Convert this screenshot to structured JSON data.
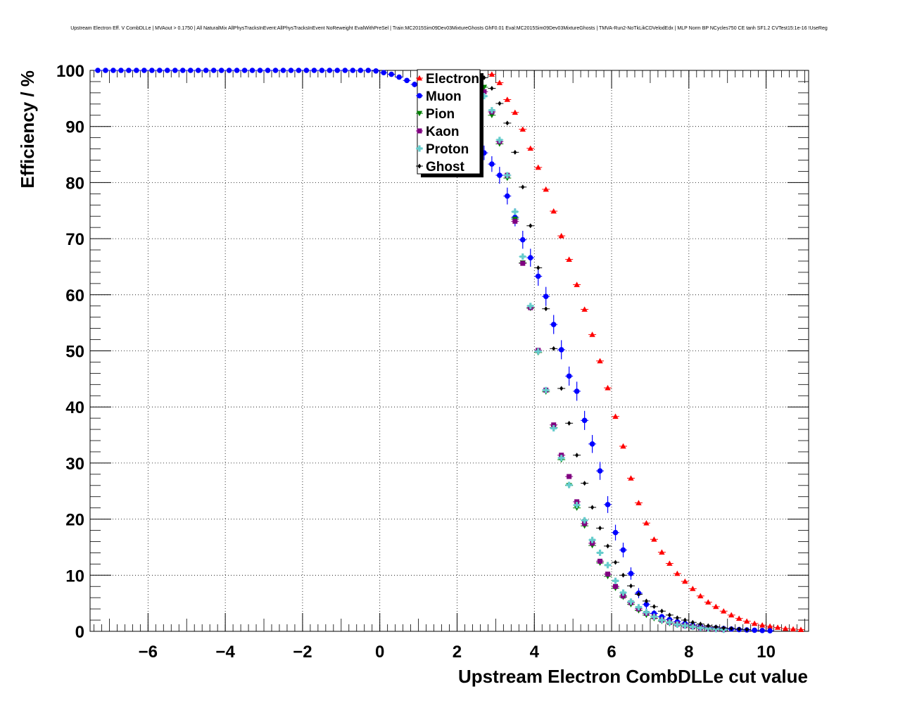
{
  "chart_data": {
    "type": "scatter",
    "title": "Upstream Electron Eff. V CombDLLe | MVAout > 0.1750 | All NaturalMix AllPhysTracksInEvent:AllPhysTracksInEvent NoReweight EvalWithPreSel | Train:MC2015Sim09Dev03MixtureGhosts GhF0.01 Eval:MC2015Sim09Dev03MixtureGhosts | TMVA-Run2-NoTkLikCDVelodEdx | MLP Norm BP NCycles750 CE tanh SF1.2 CVTest15:1e-16 !UseReg",
    "xlabel": "Upstream Electron CombDLLe cut value",
    "ylabel": "Efficiency / %",
    "xlim": [
      -7.5,
      11.1
    ],
    "ylim": [
      0,
      100
    ],
    "grid": true,
    "legend_position": "top-center",
    "x_ticks": [
      "−6",
      "−4",
      "−2",
      "0",
      "2",
      "4",
      "6",
      "8",
      "10"
    ],
    "x_tick_values": [
      -6,
      -4,
      -2,
      0,
      2,
      4,
      6,
      8,
      10
    ],
    "y_ticks": [
      "0",
      "10",
      "20",
      "30",
      "40",
      "50",
      "60",
      "70",
      "80",
      "90",
      "100"
    ],
    "y_tick_values": [
      0,
      10,
      20,
      30,
      40,
      50,
      60,
      70,
      80,
      90,
      100
    ],
    "series": [
      {
        "name": "Electron",
        "color": "#ff0000",
        "marker": "triangle-up",
        "x": [
          2.9,
          3.1,
          3.3,
          3.5,
          3.7,
          3.9,
          4.1,
          4.3,
          4.5,
          4.7,
          4.9,
          5.1,
          5.3,
          5.5,
          5.7,
          5.9,
          6.1,
          6.3,
          6.5,
          6.7,
          6.9,
          7.1,
          7.3,
          7.5,
          7.7,
          7.9,
          8.1,
          8.3,
          8.5,
          8.7,
          8.9,
          9.1,
          9.3,
          9.5,
          9.7,
          9.9,
          10.1,
          10.3,
          10.5,
          10.7,
          10.9
        ],
        "y": [
          99.3,
          97.8,
          94.8,
          92.5,
          89.5,
          86.1,
          82.7,
          78.8,
          74.9,
          70.5,
          66.3,
          61.8,
          57.4,
          52.9,
          48.2,
          43.4,
          38.3,
          33.0,
          27.3,
          22.9,
          19.3,
          16.4,
          14.1,
          12.1,
          10.3,
          8.9,
          7.6,
          6.3,
          5.2,
          4.4,
          3.6,
          2.9,
          2.3,
          1.8,
          1.4,
          1.1,
          0.9,
          0.7,
          0.5,
          0.4,
          0.3
        ]
      },
      {
        "name": "Muon",
        "color": "#0000ff",
        "marker": "circle",
        "x": [
          -7.3,
          -7.1,
          -6.9,
          -6.7,
          -6.5,
          -6.3,
          -6.1,
          -5.9,
          -5.7,
          -5.5,
          -5.3,
          -5.1,
          -4.9,
          -4.7,
          -4.5,
          -4.3,
          -4.1,
          -3.9,
          -3.7,
          -3.5,
          -3.3,
          -3.1,
          -2.9,
          -2.7,
          -2.5,
          -2.3,
          -2.1,
          -1.9,
          -1.7,
          -1.5,
          -1.3,
          -1.1,
          -0.9,
          -0.7,
          -0.5,
          -0.3,
          -0.1,
          0.1,
          0.3,
          0.5,
          0.7,
          0.9,
          1.1,
          1.3,
          1.5,
          1.7,
          1.9,
          2.1,
          2.3,
          2.5,
          2.7,
          2.9,
          3.1,
          3.3,
          3.5,
          3.7,
          3.9,
          4.1,
          4.3,
          4.5,
          4.7,
          4.9,
          5.1,
          5.3,
          5.5,
          5.7,
          5.9,
          6.1,
          6.3,
          6.5,
          6.7,
          6.9,
          7.1,
          7.3,
          7.5,
          7.7,
          7.9,
          8.1,
          8.3,
          8.5,
          8.7,
          8.9,
          9.1,
          9.3,
          9.5,
          9.7,
          9.9,
          10.1
        ],
        "y": [
          100,
          100,
          100,
          100,
          100,
          100,
          100,
          100,
          100,
          100,
          100,
          100,
          100,
          100,
          100,
          100,
          100,
          100,
          100,
          100,
          100,
          100,
          100,
          100,
          100,
          100,
          100,
          100,
          100,
          100,
          100,
          100,
          100,
          100,
          100,
          100,
          99.9,
          99.6,
          99.3,
          98.8,
          98.2,
          97.5,
          96.6,
          95.5,
          94.3,
          93.0,
          91.5,
          89.9,
          88.2,
          86.5,
          85.3,
          83.3,
          81.3,
          77.6,
          73.8,
          69.8,
          66.6,
          63.3,
          59.7,
          54.7,
          50.2,
          45.5,
          42.8,
          37.6,
          33.4,
          28.6,
          22.6,
          17.6,
          14.5,
          10.3,
          6.8,
          4.8,
          3.2,
          2.6,
          2.1,
          1.7,
          1.4,
          1.1,
          0.9,
          0.7,
          0.6,
          0.5,
          0.4,
          0.3,
          0.25,
          0.2,
          0.15,
          0.1
        ],
        "yerr": [
          0,
          0,
          0,
          0,
          0,
          0,
          0,
          0,
          0,
          0,
          0,
          0,
          0,
          0,
          0,
          0,
          0,
          0,
          0,
          0,
          0,
          0,
          0,
          0,
          0,
          0,
          0,
          0,
          0,
          0,
          0,
          0,
          0,
          0,
          0,
          0,
          0.1,
          0.2,
          0.3,
          0.3,
          0.4,
          0.5,
          0.6,
          0.7,
          0.8,
          0.9,
          1.0,
          1.1,
          1.2,
          1.2,
          1.3,
          1.4,
          1.5,
          1.5,
          1.6,
          1.6,
          1.6,
          1.7,
          1.7,
          1.7,
          1.7,
          1.7,
          1.7,
          1.7,
          1.6,
          1.6,
          1.5,
          1.4,
          1.3,
          1.1,
          0.9,
          0.8,
          0.6,
          0.5,
          0.5,
          0.4,
          0.4,
          0.3,
          0.3,
          0.3,
          0.2,
          0.2,
          0.2,
          0.2,
          0.1,
          0.1,
          0.1,
          0.1
        ]
      },
      {
        "name": "Pion",
        "color": "#008000",
        "marker": "triangle-down",
        "x": [
          2.5,
          2.7,
          2.9,
          3.1,
          3.3,
          3.5,
          3.7,
          3.9,
          4.1,
          4.3,
          4.5,
          4.7,
          4.9,
          5.1,
          5.3,
          5.5,
          5.7,
          5.9,
          6.1,
          6.3,
          6.5,
          6.7,
          6.9,
          7.1,
          7.3,
          7.5,
          7.7,
          7.9,
          8.1,
          8.3,
          8.5,
          8.7,
          8.9
        ],
        "y": [
          98.3,
          97.0,
          92.0,
          86.9,
          80.8,
          73.5,
          65.7,
          57.6,
          49.7,
          42.7,
          36.3,
          30.6,
          26.0,
          22.0,
          18.8,
          15.3,
          12.2,
          9.8,
          7.7,
          6.1,
          4.8,
          3.7,
          2.9,
          2.3,
          1.8,
          1.4,
          1.1,
          0.9,
          0.7,
          0.5,
          0.4,
          0.3,
          0.2
        ]
      },
      {
        "name": "Kaon",
        "color": "#800080",
        "marker": "square",
        "x": [
          2.5,
          2.7,
          2.9,
          3.1,
          3.3,
          3.5,
          3.7,
          3.9,
          4.1,
          4.3,
          4.5,
          4.7,
          4.9,
          5.1,
          5.3,
          5.5,
          5.7,
          5.9,
          6.1,
          6.3,
          6.5,
          6.7,
          6.9,
          7.1,
          7.3,
          7.5,
          7.7,
          7.9,
          8.1,
          8.3,
          8.5,
          8.7,
          8.9
        ],
        "y": [
          98.5,
          96.2,
          92.6,
          87.3,
          81.3,
          73.1,
          65.6,
          57.7,
          50.1,
          43.0,
          36.8,
          31.4,
          27.6,
          23.1,
          19.2,
          15.7,
          12.5,
          10.2,
          8.0,
          6.3,
          5.1,
          4.0,
          3.2,
          2.6,
          2.0,
          1.6,
          1.3,
          1.0,
          0.8,
          0.6,
          0.5,
          0.4,
          0.3
        ]
      },
      {
        "name": "Proton",
        "color": "#66cccc",
        "marker": "cross",
        "x": [
          2.5,
          2.7,
          2.9,
          3.1,
          3.3,
          3.5,
          3.7,
          3.9,
          4.1,
          4.3,
          4.5,
          4.7,
          4.9,
          5.1,
          5.3,
          5.5,
          5.7,
          5.9,
          6.1,
          6.3,
          6.5,
          6.7,
          6.9,
          7.1,
          7.3,
          7.5,
          7.7,
          7.9,
          8.1,
          8.3,
          8.5,
          8.7,
          8.9
        ],
        "y": [
          98.0,
          95.4,
          92.9,
          87.6,
          81.3,
          74.8,
          66.8,
          58.0,
          49.9,
          43.0,
          36.2,
          30.9,
          26.1,
          22.5,
          19.8,
          16.3,
          14.0,
          11.8,
          9.0,
          6.9,
          5.3,
          4.3,
          3.4,
          2.6,
          2.0,
          1.6,
          1.2,
          1.0,
          0.8,
          0.6,
          0.5,
          0.4,
          0.3
        ]
      },
      {
        "name": "Ghost",
        "color": "#000000",
        "marker": "diamond",
        "x": [
          2.5,
          2.7,
          2.9,
          3.1,
          3.3,
          3.5,
          3.7,
          3.9,
          4.1,
          4.3,
          4.5,
          4.7,
          4.9,
          5.1,
          5.3,
          5.5,
          5.7,
          5.9,
          6.1,
          6.3,
          6.5,
          6.7,
          6.9,
          7.1,
          7.3,
          7.5,
          7.7,
          7.9,
          8.1,
          8.3,
          8.5,
          8.7,
          8.9,
          9.1,
          9.3,
          9.5
        ],
        "y": [
          99.6,
          98.7,
          96.8,
          94.1,
          90.6,
          85.4,
          79.2,
          72.3,
          64.8,
          57.5,
          50.4,
          43.3,
          37.1,
          31.4,
          26.4,
          22.1,
          18.4,
          15.2,
          12.3,
          10.0,
          8.1,
          6.6,
          5.4,
          4.4,
          3.6,
          2.9,
          2.4,
          2.0,
          1.6,
          1.3,
          1.0,
          0.8,
          0.6,
          0.5,
          0.4,
          0.3
        ]
      }
    ]
  }
}
